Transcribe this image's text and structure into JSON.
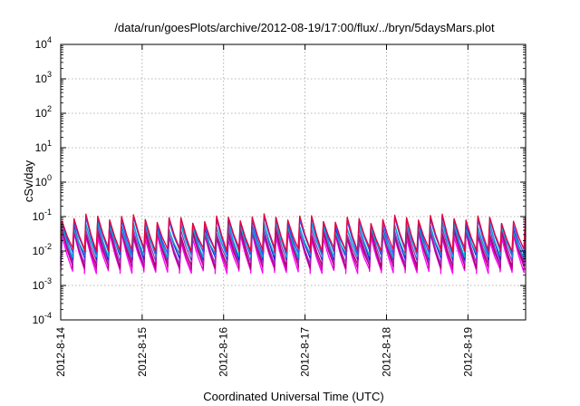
{
  "chart_data": {
    "type": "line",
    "title": "/data/run/goesPlots/archive/2012-08-19/17:00/flux/../bryn/5daysMars.plot",
    "xlabel": "Coordinated Universal Time (UTC)",
    "ylabel": "cSv/day",
    "yscale": "log",
    "ylim": [
      0.0001,
      10000
    ],
    "xlim": [
      "2012-08-14T00:00",
      "2012-08-19T17:00"
    ],
    "x_ticks": [
      "2012-8-14",
      "2012-8-15",
      "2012-8-16",
      "2012-8-17",
      "2012-8-18",
      "2012-8-19"
    ],
    "y_ticks": [
      {
        "base": "10",
        "exp": "-4"
      },
      {
        "base": "10",
        "exp": "-3"
      },
      {
        "base": "10",
        "exp": "-2"
      },
      {
        "base": "10",
        "exp": "-1"
      },
      {
        "base": "10",
        "exp": "0"
      },
      {
        "base": "10",
        "exp": "1"
      },
      {
        "base": "10",
        "exp": "2"
      },
      {
        "base": "10",
        "exp": "3"
      },
      {
        "base": "10",
        "exp": "4"
      }
    ],
    "grid": true,
    "legend": "none",
    "cycle_hours": 3.5,
    "series": [
      {
        "color": "#ff00ff",
        "low": 0.0026,
        "high": 0.026
      },
      {
        "color": "#cc0099",
        "low": 0.0033,
        "high": 0.032
      },
      {
        "color": "#aa0066",
        "low": 0.0038,
        "high": 0.036
      },
      {
        "color": "#9933cc",
        "low": 0.0048,
        "high": 0.045
      },
      {
        "color": "#2222dd",
        "low": 0.0065,
        "high": 0.06
      },
      {
        "color": "#00b0c8",
        "low": 0.0075,
        "high": 0.052
      },
      {
        "color": "#3355ff",
        "low": 0.0095,
        "high": 0.078
      },
      {
        "color": "#e6003c",
        "low": 0.011,
        "high": 0.09
      }
    ]
  }
}
